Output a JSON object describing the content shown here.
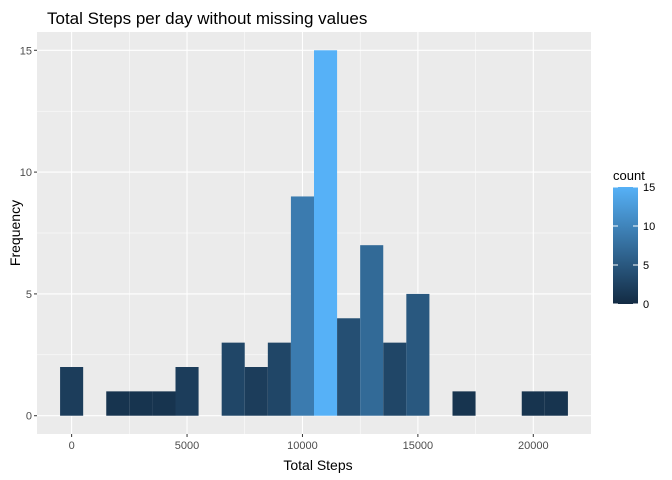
{
  "chart_data": {
    "type": "bar",
    "subtype": "histogram",
    "title": "Total Steps per day without missing values",
    "xlabel": "Total Steps",
    "ylabel": "Frequency",
    "bin_width": 1000,
    "bins": [
      {
        "center": 0,
        "count": 2
      },
      {
        "center": 1000,
        "count": 0
      },
      {
        "center": 2000,
        "count": 1
      },
      {
        "center": 3000,
        "count": 1
      },
      {
        "center": 4000,
        "count": 1
      },
      {
        "center": 5000,
        "count": 2
      },
      {
        "center": 6000,
        "count": 0
      },
      {
        "center": 7000,
        "count": 3
      },
      {
        "center": 8000,
        "count": 2
      },
      {
        "center": 9000,
        "count": 3
      },
      {
        "center": 10000,
        "count": 9
      },
      {
        "center": 11000,
        "count": 15
      },
      {
        "center": 12000,
        "count": 4
      },
      {
        "center": 13000,
        "count": 7
      },
      {
        "center": 14000,
        "count": 3
      },
      {
        "center": 15000,
        "count": 5
      },
      {
        "center": 16000,
        "count": 0
      },
      {
        "center": 17000,
        "count": 1
      },
      {
        "center": 18000,
        "count": 0
      },
      {
        "center": 19000,
        "count": 0
      },
      {
        "center": 20000,
        "count": 1
      },
      {
        "center": 21000,
        "count": 1
      }
    ],
    "xlim": [
      -1500,
      22500
    ],
    "ylim": [
      -0.75,
      15.75
    ],
    "x_ticks": [
      0,
      5000,
      10000,
      15000,
      20000
    ],
    "x_tick_labels": [
      "0",
      "5000",
      "10000",
      "15000",
      "20000"
    ],
    "y_ticks": [
      0,
      5,
      10,
      15
    ],
    "y_tick_labels": [
      "0",
      "5",
      "10",
      "15"
    ],
    "grid": true,
    "legend": {
      "title": "count",
      "position": "right",
      "type": "colorbar",
      "range": [
        0,
        15
      ],
      "ticks": [
        0,
        5,
        10,
        15
      ],
      "tick_labels": [
        "0",
        "5",
        "10",
        "15"
      ]
    },
    "colors": {
      "low": "#132B43",
      "high": "#56B1F7",
      "panel_background": "#EBEBEB",
      "grid_major": "#FFFFFF"
    }
  }
}
